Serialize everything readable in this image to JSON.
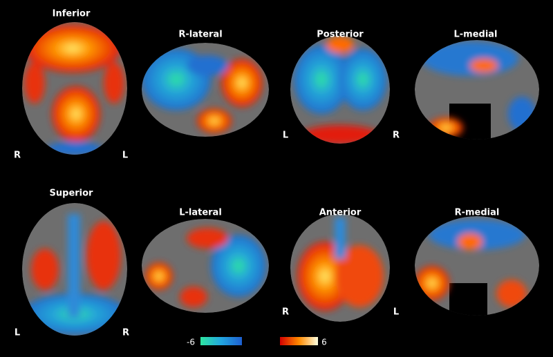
{
  "views": [
    {
      "title": "Inferior",
      "left": "R",
      "right": "L"
    },
    {
      "title": "R-lateral"
    },
    {
      "title": "Posterior",
      "left": "L",
      "right": "R"
    },
    {
      "title": "L-medial"
    },
    {
      "title": "Superior",
      "left": "L",
      "right": "R"
    },
    {
      "title": "L-lateral"
    },
    {
      "title": "Anterior",
      "left": "R",
      "right": "L"
    },
    {
      "title": "R-medial"
    }
  ],
  "colorbar": {
    "min": -6,
    "max": 6
  }
}
